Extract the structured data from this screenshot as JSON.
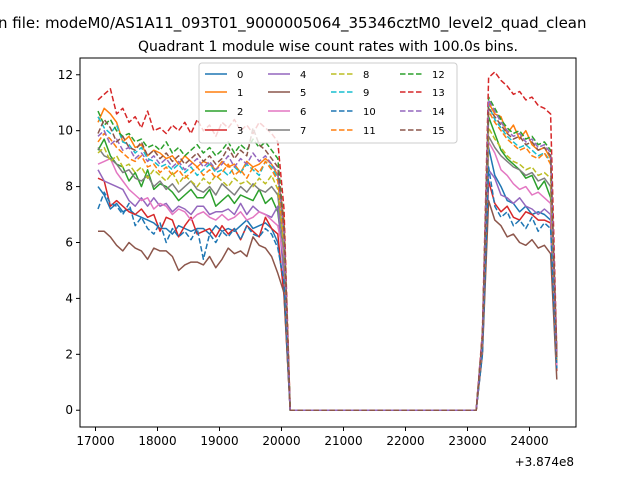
{
  "chart_data": {
    "type": "line",
    "suptitle": "n file: modeM0/AS1A11_093T01_9000005064_35346cztM0_level2_quad_clean",
    "title": "Quadrant 1 module wise count rates with 100.0s bins.",
    "xlabel": "",
    "ylabel": "",
    "x_offset_label": "+3.874e8",
    "xlim": [
      16750,
      24750
    ],
    "ylim": [
      -0.6,
      12.6
    ],
    "x_ticks": [
      17000,
      18000,
      19000,
      20000,
      21000,
      22000,
      23000,
      24000
    ],
    "x_tick_labels": [
      "17000",
      "18000",
      "19000",
      "20000",
      "21000",
      "22000",
      "23000",
      "24000"
    ],
    "y_ticks": [
      0,
      2,
      4,
      6,
      8,
      10,
      12
    ],
    "y_tick_labels": [
      "0",
      "2",
      "4",
      "6",
      "8",
      "10",
      "12"
    ],
    "x": [
      17040,
      17140,
      17240,
      17340,
      17440,
      17540,
      17640,
      17740,
      17840,
      17940,
      18040,
      18140,
      18240,
      18340,
      18440,
      18540,
      18640,
      18740,
      18840,
      18940,
      19040,
      19140,
      19240,
      19340,
      19440,
      19540,
      19640,
      19740,
      19840,
      19940,
      20040,
      20140,
      23140,
      23240,
      23340,
      23440,
      23540,
      23640,
      23740,
      23840,
      23940,
      24040,
      24140,
      24240,
      24340,
      24440
    ],
    "legend_position": "upper center",
    "series": [
      {
        "name": "0",
        "color": "#1f77b4",
        "dash": false,
        "values": [
          8.0,
          7.7,
          7.2,
          7.4,
          7.1,
          7.2,
          7.0,
          6.9,
          6.8,
          6.7,
          6.5,
          6.5,
          6.3,
          6.6,
          6.5,
          6.4,
          6.5,
          6.5,
          6.3,
          6.6,
          6.4,
          6.5,
          6.4,
          6.6,
          6.8,
          6.5,
          6.6,
          6.7,
          6.5,
          6.0,
          4.3,
          0,
          0,
          2.2,
          9.4,
          8.4,
          8.0,
          7.5,
          7.4,
          7.1,
          7.3,
          7.0,
          7.1,
          7.0,
          6.8,
          1.7
        ]
      },
      {
        "name": "1",
        "color": "#ff7f0e",
        "dash": false,
        "values": [
          10.3,
          10.8,
          10.6,
          10.3,
          9.6,
          9.8,
          9.4,
          9.5,
          9.1,
          9.3,
          9.2,
          9.0,
          9.1,
          8.8,
          9.1,
          8.9,
          8.7,
          8.9,
          8.8,
          8.6,
          8.9,
          8.7,
          8.8,
          8.5,
          8.9,
          8.7,
          8.8,
          9.0,
          8.8,
          8.4,
          6.8,
          0,
          0,
          2.6,
          11.0,
          10.6,
          10.5,
          9.9,
          10.2,
          9.7,
          10.0,
          9.5,
          9.3,
          9.4,
          9.0,
          1.9
        ]
      },
      {
        "name": "2",
        "color": "#2ca02c",
        "dash": false,
        "values": [
          9.3,
          9.7,
          9.1,
          8.8,
          8.7,
          8.2,
          8.5,
          8.0,
          8.6,
          7.9,
          8.1,
          8.0,
          7.8,
          7.5,
          7.7,
          7.9,
          7.6,
          7.6,
          7.9,
          7.3,
          7.5,
          7.7,
          7.4,
          7.7,
          7.6,
          7.5,
          7.9,
          7.4,
          7.6,
          7.1,
          5.2,
          0,
          0,
          2.3,
          10.5,
          9.9,
          9.3,
          9.0,
          8.8,
          8.6,
          8.3,
          8.4,
          7.9,
          8.2,
          7.6,
          1.6
        ]
      },
      {
        "name": "3",
        "color": "#d62728",
        "dash": false,
        "values": [
          8.3,
          8.2,
          7.3,
          7.5,
          7.3,
          7.1,
          7.0,
          7.2,
          6.9,
          7.0,
          6.4,
          6.9,
          6.8,
          6.2,
          6.6,
          6.9,
          6.3,
          6.4,
          6.5,
          6.2,
          6.6,
          6.3,
          6.5,
          6.1,
          6.6,
          6.4,
          6.2,
          6.9,
          6.5,
          6.3,
          4.1,
          0,
          0,
          2.1,
          8.2,
          7.4,
          7.1,
          7.3,
          6.9,
          6.8,
          7.1,
          7.0,
          6.8,
          6.8,
          6.7,
          1.4
        ]
      },
      {
        "name": "4",
        "color": "#9467bd",
        "dash": false,
        "values": [
          8.6,
          8.2,
          8.1,
          8.0,
          7.9,
          7.5,
          7.3,
          7.6,
          7.3,
          7.6,
          7.3,
          7.4,
          7.1,
          7.3,
          7.2,
          7.0,
          7.3,
          7.3,
          7.0,
          7.1,
          7.1,
          7.2,
          7.0,
          7.4,
          7.0,
          7.3,
          7.1,
          7.0,
          6.9,
          7.3,
          4.7,
          0,
          0,
          2.2,
          8.6,
          8.3,
          7.7,
          7.6,
          7.4,
          7.6,
          7.3,
          7.2,
          7.0,
          7.2,
          7.0,
          1.5
        ]
      },
      {
        "name": "5",
        "color": "#8c564b",
        "dash": false,
        "values": [
          6.4,
          6.4,
          6.2,
          5.9,
          5.7,
          6.0,
          5.8,
          5.7,
          5.4,
          5.8,
          5.7,
          5.7,
          5.5,
          5.0,
          5.2,
          5.3,
          5.3,
          5.2,
          5.5,
          5.1,
          5.4,
          5.8,
          5.6,
          5.7,
          5.5,
          6.2,
          5.9,
          5.8,
          5.5,
          4.9,
          4.2,
          0,
          0,
          2.0,
          7.5,
          6.8,
          6.6,
          6.2,
          6.3,
          6.0,
          5.9,
          6.1,
          5.8,
          5.9,
          5.6,
          1.1
        ]
      },
      {
        "name": "6",
        "color": "#e377c2",
        "dash": false,
        "values": [
          8.8,
          8.9,
          9.0,
          8.5,
          8.2,
          7.9,
          7.7,
          7.5,
          7.6,
          7.2,
          7.4,
          7.3,
          7.0,
          7.2,
          7.1,
          6.8,
          7.0,
          7.1,
          6.9,
          6.8,
          7.0,
          6.8,
          6.9,
          7.1,
          6.8,
          6.9,
          7.1,
          7.0,
          6.8,
          6.6,
          5.5,
          0,
          0,
          2.3,
          9.6,
          9.2,
          8.6,
          8.4,
          8.1,
          7.9,
          8.0,
          7.7,
          7.8,
          7.6,
          7.4,
          1.6
        ]
      },
      {
        "name": "7",
        "color": "#7f7f7f",
        "dash": false,
        "values": [
          9.4,
          9.1,
          9.0,
          8.8,
          8.5,
          8.6,
          8.3,
          8.2,
          8.4,
          8.0,
          8.2,
          7.9,
          8.1,
          7.8,
          8.0,
          8.2,
          7.9,
          7.8,
          8.0,
          7.7,
          8.1,
          7.9,
          7.7,
          8.0,
          7.8,
          8.1,
          7.9,
          7.8,
          8.0,
          7.7,
          5.6,
          0,
          0,
          2.4,
          9.8,
          9.4,
          9.1,
          8.9,
          8.7,
          8.6,
          8.4,
          8.5,
          8.2,
          8.3,
          8.0,
          1.7
        ]
      },
      {
        "name": "8",
        "color": "#bcbd22",
        "dash": true,
        "values": [
          9.2,
          9.4,
          8.9,
          9.1,
          8.7,
          8.8,
          8.5,
          8.7,
          8.3,
          8.6,
          8.4,
          8.2,
          8.5,
          8.1,
          8.4,
          8.2,
          8.0,
          8.3,
          8.1,
          8.4,
          8.2,
          8.0,
          8.3,
          8.1,
          8.2,
          8.0,
          8.3,
          8.1,
          8.4,
          7.9,
          5.9,
          0,
          0,
          2.5,
          10.1,
          9.7,
          9.4,
          9.1,
          8.9,
          8.8,
          8.6,
          8.7,
          8.4,
          8.5,
          8.3,
          1.8
        ]
      },
      {
        "name": "9",
        "color": "#17becf",
        "dash": true,
        "values": [
          10.5,
          10.1,
          9.9,
          10.2,
          9.6,
          9.5,
          9.2,
          9.4,
          9.0,
          8.9,
          8.7,
          8.8,
          8.6,
          8.8,
          8.5,
          8.7,
          8.4,
          8.6,
          8.8,
          8.5,
          8.6,
          8.4,
          8.7,
          8.5,
          8.8,
          8.6,
          8.4,
          8.9,
          8.7,
          8.3,
          6.2,
          0,
          0,
          2.6,
          10.9,
          10.4,
          10.1,
          9.8,
          9.6,
          9.4,
          9.5,
          9.3,
          9.1,
          9.2,
          8.9,
          1.9
        ]
      },
      {
        "name": "10",
        "color": "#1f77b4",
        "dash": true,
        "values": [
          7.2,
          7.8,
          7.4,
          7.3,
          7.0,
          7.4,
          6.6,
          6.9,
          6.5,
          6.3,
          6.7,
          6.0,
          6.5,
          6.2,
          6.4,
          6.1,
          6.5,
          5.4,
          6.3,
          6.0,
          6.4,
          6.2,
          6.5,
          6.1,
          6.6,
          6.3,
          6.2,
          6.5,
          6.3,
          5.8,
          4.6,
          0,
          0,
          2.0,
          8.7,
          7.3,
          6.9,
          7.1,
          6.6,
          6.8,
          6.5,
          6.9,
          6.4,
          6.7,
          6.5,
          1.5
        ]
      },
      {
        "name": "11",
        "color": "#ff7f0e",
        "dash": true,
        "values": [
          9.6,
          9.9,
          9.7,
          9.4,
          9.2,
          9.0,
          8.9,
          9.1,
          8.7,
          8.8,
          8.5,
          8.7,
          8.4,
          8.6,
          8.3,
          8.5,
          8.7,
          8.4,
          8.6,
          8.3,
          8.5,
          8.8,
          8.4,
          8.6,
          8.3,
          8.7,
          8.5,
          8.9,
          8.6,
          8.2,
          6.1,
          0,
          0,
          2.5,
          10.7,
          10.3,
          10.0,
          9.7,
          9.5,
          9.3,
          9.4,
          9.1,
          9.0,
          9.2,
          8.8,
          1.8
        ]
      },
      {
        "name": "12",
        "color": "#2ca02c",
        "dash": true,
        "values": [
          10.7,
          10.2,
          10.4,
          10.0,
          9.8,
          9.9,
          9.6,
          9.7,
          9.4,
          9.5,
          9.3,
          9.6,
          9.2,
          9.4,
          9.1,
          9.3,
          9.5,
          9.2,
          9.4,
          9.1,
          9.3,
          9.6,
          9.2,
          9.5,
          9.3,
          9.7,
          9.4,
          9.6,
          9.3,
          9.0,
          6.6,
          0,
          0,
          2.7,
          11.2,
          10.8,
          10.4,
          10.1,
          9.9,
          10.0,
          9.7,
          9.8,
          9.5,
          9.6,
          9.3,
          2.0
        ]
      },
      {
        "name": "13",
        "color": "#d62728",
        "dash": true,
        "values": [
          11.1,
          11.3,
          11.5,
          10.6,
          10.8,
          10.3,
          10.5,
          10.1,
          10.7,
          10.0,
          10.1,
          9.9,
          10.2,
          10.0,
          10.3,
          9.9,
          10.4,
          10.0,
          10.2,
          9.8,
          10.3,
          10.1,
          10.4,
          10.0,
          10.2,
          9.9,
          10.3,
          10.1,
          9.9,
          9.6,
          7.2,
          0,
          0,
          2.8,
          11.9,
          12.1,
          11.8,
          11.6,
          11.3,
          11.4,
          11.1,
          11.2,
          10.9,
          10.8,
          10.6,
          2.1
        ]
      },
      {
        "name": "14",
        "color": "#9467bd",
        "dash": true,
        "values": [
          9.8,
          10.0,
          9.5,
          9.7,
          9.3,
          9.4,
          9.0,
          9.2,
          8.9,
          9.1,
          8.8,
          9.0,
          8.7,
          8.9,
          8.6,
          8.8,
          9.0,
          8.7,
          8.9,
          8.6,
          8.8,
          9.1,
          8.7,
          9.0,
          8.8,
          9.2,
          8.9,
          9.1,
          8.8,
          8.5,
          6.4,
          0,
          0,
          2.6,
          11.1,
          10.7,
          10.3,
          10.0,
          9.8,
          9.9,
          9.6,
          9.7,
          9.4,
          9.5,
          9.2,
          1.9
        ]
      },
      {
        "name": "15",
        "color": "#8c564b",
        "dash": true,
        "values": [
          9.9,
          10.4,
          10.1,
          9.6,
          9.8,
          9.4,
          9.3,
          9.6,
          9.1,
          9.3,
          9.0,
          9.2,
          8.9,
          9.1,
          8.8,
          9.0,
          9.2,
          8.9,
          9.1,
          8.8,
          9.0,
          9.4,
          9.0,
          9.3,
          9.1,
          10.1,
          9.5,
          9.3,
          9.0,
          8.7,
          6.5,
          0,
          0,
          2.6,
          10.8,
          10.5,
          10.2,
          9.9,
          9.7,
          9.8,
          9.5,
          9.6,
          9.3,
          9.4,
          9.1,
          1.9
        ]
      }
    ]
  }
}
